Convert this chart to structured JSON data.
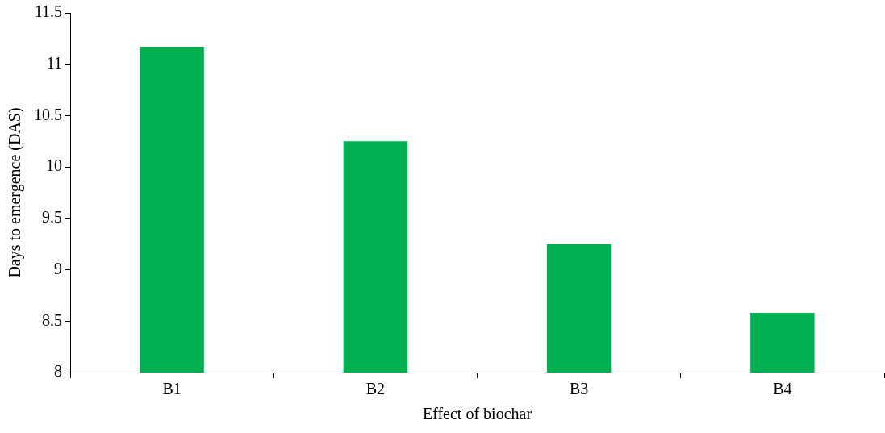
{
  "chart_data": {
    "type": "bar",
    "xlabel": "Effect of biochar",
    "ylabel": "Days to emergence (DAS)",
    "categories": [
      "B1",
      "B2",
      "B3",
      "B4"
    ],
    "values": [
      11.17,
      10.25,
      9.25,
      8.58
    ],
    "color": "#00b050",
    "ylim": [
      8,
      11.5
    ],
    "yticks": [
      8,
      8.5,
      9,
      9.5,
      10,
      10.5,
      11,
      11.5
    ],
    "grid": false,
    "legend": false
  }
}
